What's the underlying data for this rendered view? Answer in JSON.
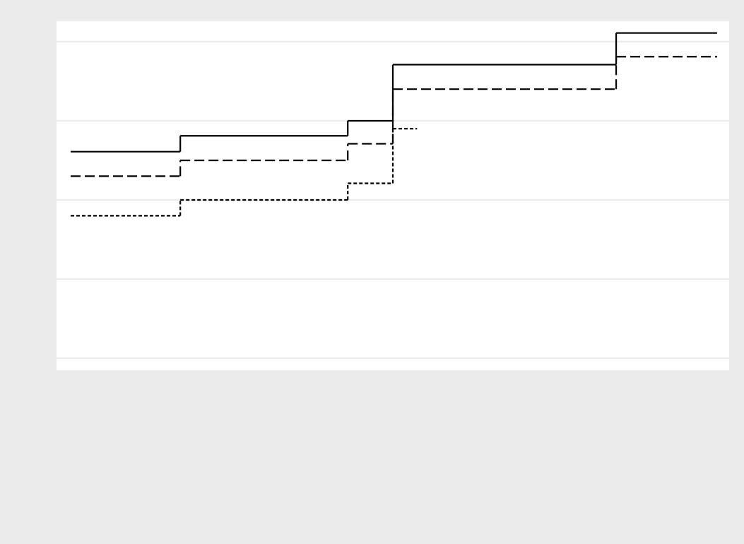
{
  "chart_data": {
    "type": "step",
    "xlim": [
      0,
      100
    ],
    "ylim": [
      -0.152,
      4.259
    ],
    "yticks": [
      0,
      1,
      2,
      3,
      4
    ],
    "grid": true,
    "series": [
      {
        "color": "#000000",
        "dash": "solid",
        "x": [
          2.1,
          18.4,
          43.3,
          50.0,
          83.2,
          98.2
        ],
        "values": [
          2.61,
          2.81,
          3.0,
          3.71,
          4.11,
          4.11
        ]
      },
      {
        "color": "#000000",
        "dash": "long",
        "x": [
          2.1,
          18.4,
          43.3,
          50.0,
          83.2,
          98.2
        ],
        "values": [
          2.3,
          2.5,
          2.71,
          3.4,
          3.81,
          3.81
        ]
      },
      {
        "color": "#000000",
        "dash": "short",
        "x": [
          2.1,
          18.4,
          43.3,
          50.0,
          53.6
        ],
        "values": [
          1.8,
          2.0,
          2.21,
          2.9,
          2.9
        ]
      }
    ]
  }
}
